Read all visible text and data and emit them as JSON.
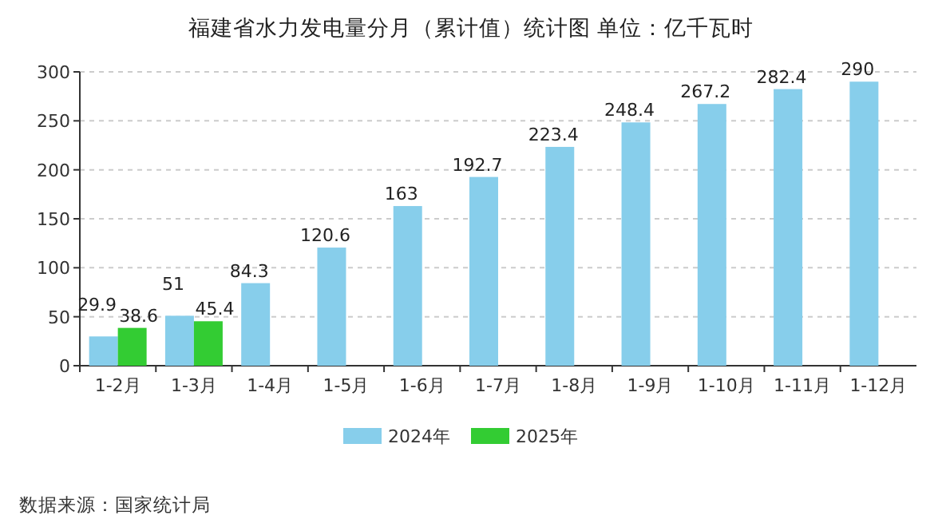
{
  "chart_data": {
    "type": "bar",
    "title": "福建省水力发电量分月（累计值）统计图  单位：亿千瓦时",
    "categories": [
      "1-2月",
      "1-3月",
      "1-4月",
      "1-5月",
      "1-6月",
      "1-7月",
      "1-8月",
      "1-9月",
      "1-10月",
      "1-11月",
      "1-12月"
    ],
    "series": [
      {
        "name": "2024年",
        "color": "#87ceeb",
        "values": [
          29.9,
          51,
          84.3,
          120.6,
          163,
          192.7,
          223.4,
          248.4,
          267.2,
          282.4,
          290
        ]
      },
      {
        "name": "2025年",
        "color": "#33cc33",
        "values": [
          38.6,
          45.4,
          null,
          null,
          null,
          null,
          null,
          null,
          null,
          null,
          null
        ]
      }
    ],
    "ylim": [
      0,
      300
    ],
    "yticks": [
      0,
      50,
      100,
      150,
      200,
      250,
      300
    ],
    "grid": "y",
    "legend": "bottom",
    "data_labels": true,
    "annotations": [
      "数据来源：国家统计局"
    ]
  }
}
